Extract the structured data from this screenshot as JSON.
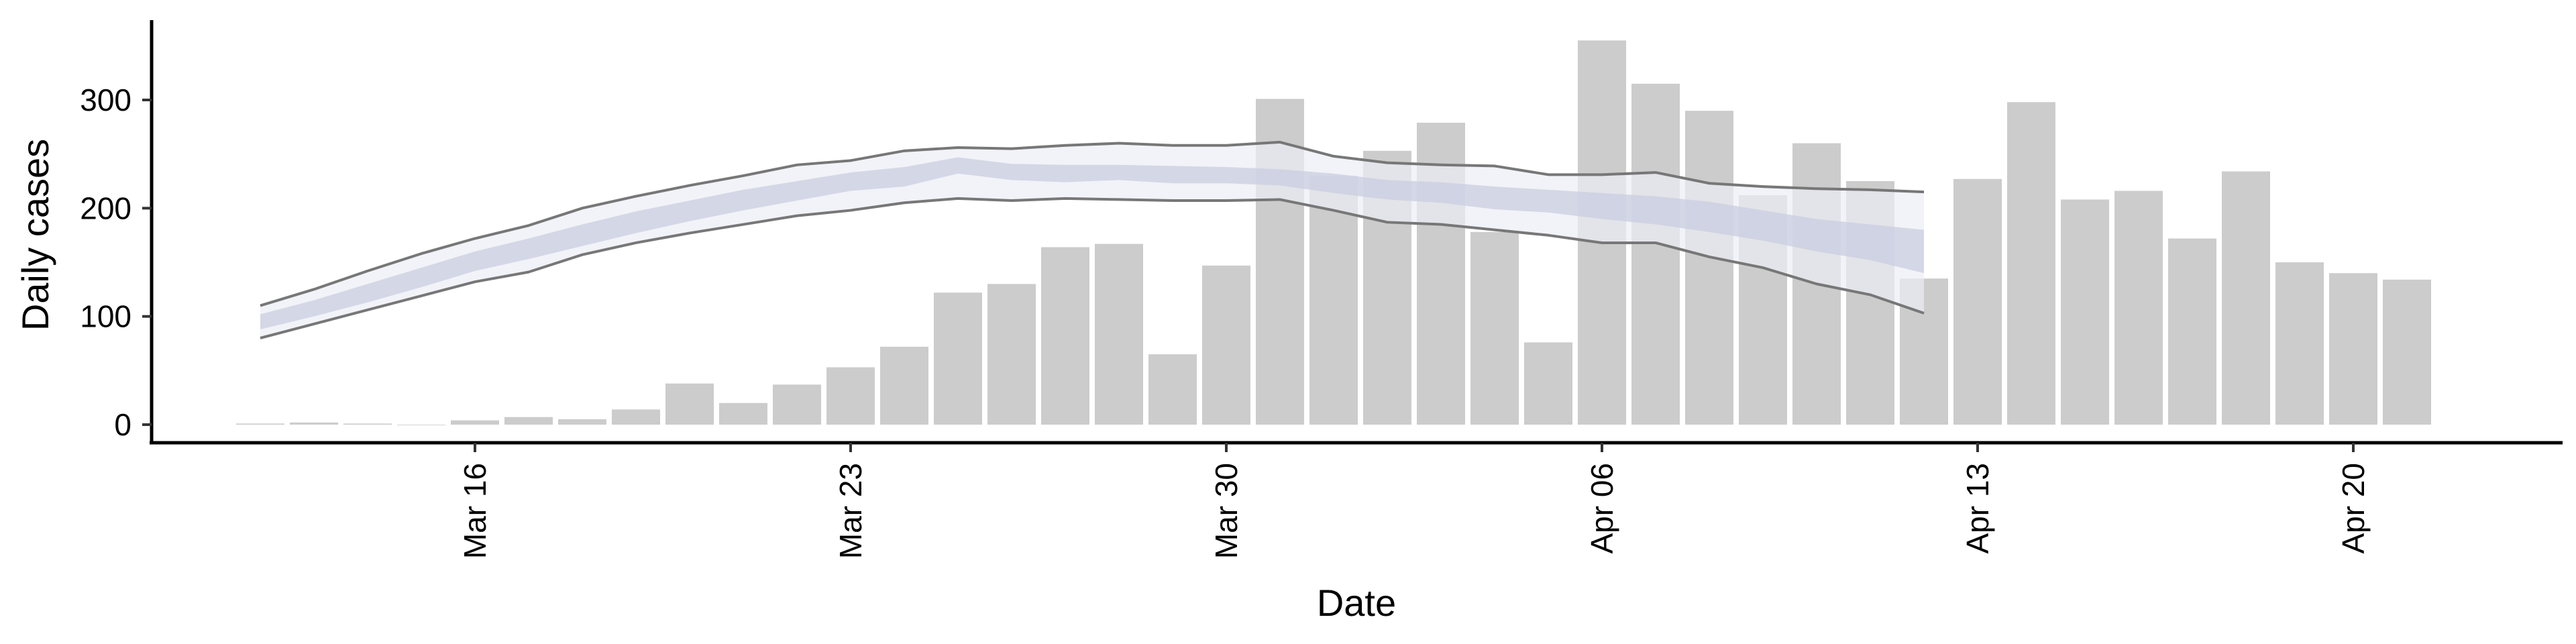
{
  "chart_data": {
    "type": "bar",
    "xlabel": "Date",
    "ylabel": "Daily cases",
    "ylim": [
      -15,
      375
    ],
    "yticks": [
      0,
      100,
      200,
      300
    ],
    "x_start": "2020-03-12",
    "x_end": "2020-04-21",
    "xticks": [
      "2020-03-16",
      "2020-03-23",
      "2020-03-30",
      "2020-04-06",
      "2020-04-13",
      "2020-04-20"
    ],
    "xtick_labels": [
      "Mar 16",
      "Mar 23",
      "Mar 30",
      "Apr 06",
      "Apr 13",
      "Apr 20"
    ],
    "bars": {
      "dates": [
        "2020-03-12",
        "2020-03-13",
        "2020-03-14",
        "2020-03-15",
        "2020-03-16",
        "2020-03-17",
        "2020-03-18",
        "2020-03-19",
        "2020-03-20",
        "2020-03-21",
        "2020-03-22",
        "2020-03-23",
        "2020-03-24",
        "2020-03-25",
        "2020-03-26",
        "2020-03-27",
        "2020-03-28",
        "2020-03-29",
        "2020-03-30",
        "2020-03-31",
        "2020-04-01",
        "2020-04-02",
        "2020-04-03",
        "2020-04-04",
        "2020-04-05",
        "2020-04-06",
        "2020-04-07",
        "2020-04-08",
        "2020-04-09",
        "2020-04-10",
        "2020-04-11",
        "2020-04-12",
        "2020-04-13",
        "2020-04-14",
        "2020-04-15",
        "2020-04-16",
        "2020-04-17",
        "2020-04-18",
        "2020-04-19",
        "2020-04-20",
        "2020-04-21"
      ],
      "values": [
        1,
        2,
        1,
        0,
        4,
        7,
        5,
        14,
        38,
        20,
        37,
        53,
        72,
        122,
        130,
        164,
        167,
        65,
        147,
        301,
        230,
        253,
        279,
        178,
        76,
        355,
        315,
        290,
        212,
        260,
        225,
        135,
        227,
        298,
        208,
        216,
        172,
        234,
        150,
        140,
        134
      ],
      "color": "#cccccc"
    },
    "forecast": {
      "dates": [
        "2020-03-12",
        "2020-03-13",
        "2020-03-14",
        "2020-03-15",
        "2020-03-16",
        "2020-03-17",
        "2020-03-18",
        "2020-03-19",
        "2020-03-20",
        "2020-03-21",
        "2020-03-22",
        "2020-03-23",
        "2020-03-24",
        "2020-03-25",
        "2020-03-26",
        "2020-03-27",
        "2020-03-28",
        "2020-03-29",
        "2020-03-30",
        "2020-03-31",
        "2020-04-01",
        "2020-04-02",
        "2020-04-03",
        "2020-04-04",
        "2020-04-05",
        "2020-04-06",
        "2020-04-07",
        "2020-04-08",
        "2020-04-09",
        "2020-04-10",
        "2020-04-11",
        "2020-04-12"
      ],
      "upper": [
        110,
        125,
        142,
        158,
        172,
        184,
        200,
        211,
        221,
        230,
        240,
        244,
        253,
        256,
        255,
        258,
        260,
        258,
        258,
        261,
        248,
        242,
        240,
        239,
        231,
        231,
        233,
        223,
        220,
        218,
        217,
        215
      ],
      "upper50": [
        102,
        115,
        130,
        145,
        160,
        172,
        185,
        197,
        207,
        217,
        225,
        233,
        238,
        247,
        241,
        240,
        240,
        239,
        238,
        236,
        232,
        226,
        224,
        220,
        217,
        214,
        211,
        206,
        198,
        190,
        185,
        180
      ],
      "median": [
        95,
        108,
        121,
        134,
        151,
        162,
        174,
        187,
        198,
        208,
        217,
        226,
        230,
        241,
        234,
        233,
        234,
        232,
        231,
        229,
        224,
        218,
        216,
        211,
        208,
        203,
        199,
        193,
        186,
        176,
        169,
        160
      ],
      "lower50": [
        88,
        100,
        113,
        127,
        142,
        153,
        165,
        177,
        188,
        198,
        207,
        216,
        220,
        232,
        226,
        224,
        226,
        223,
        223,
        221,
        214,
        208,
        205,
        199,
        196,
        190,
        185,
        178,
        170,
        160,
        152,
        140
      ],
      "lower": [
        80,
        93,
        106,
        119,
        132,
        141,
        157,
        168,
        177,
        185,
        193,
        198,
        205,
        209,
        207,
        209,
        208,
        207,
        207,
        208,
        198,
        187,
        185,
        180,
        175,
        168,
        168,
        155,
        145,
        130,
        120,
        103
      ],
      "outer_band_color": "#eceef5",
      "inner_band_color": "#c9cde0",
      "line_color": "#777777"
    }
  }
}
